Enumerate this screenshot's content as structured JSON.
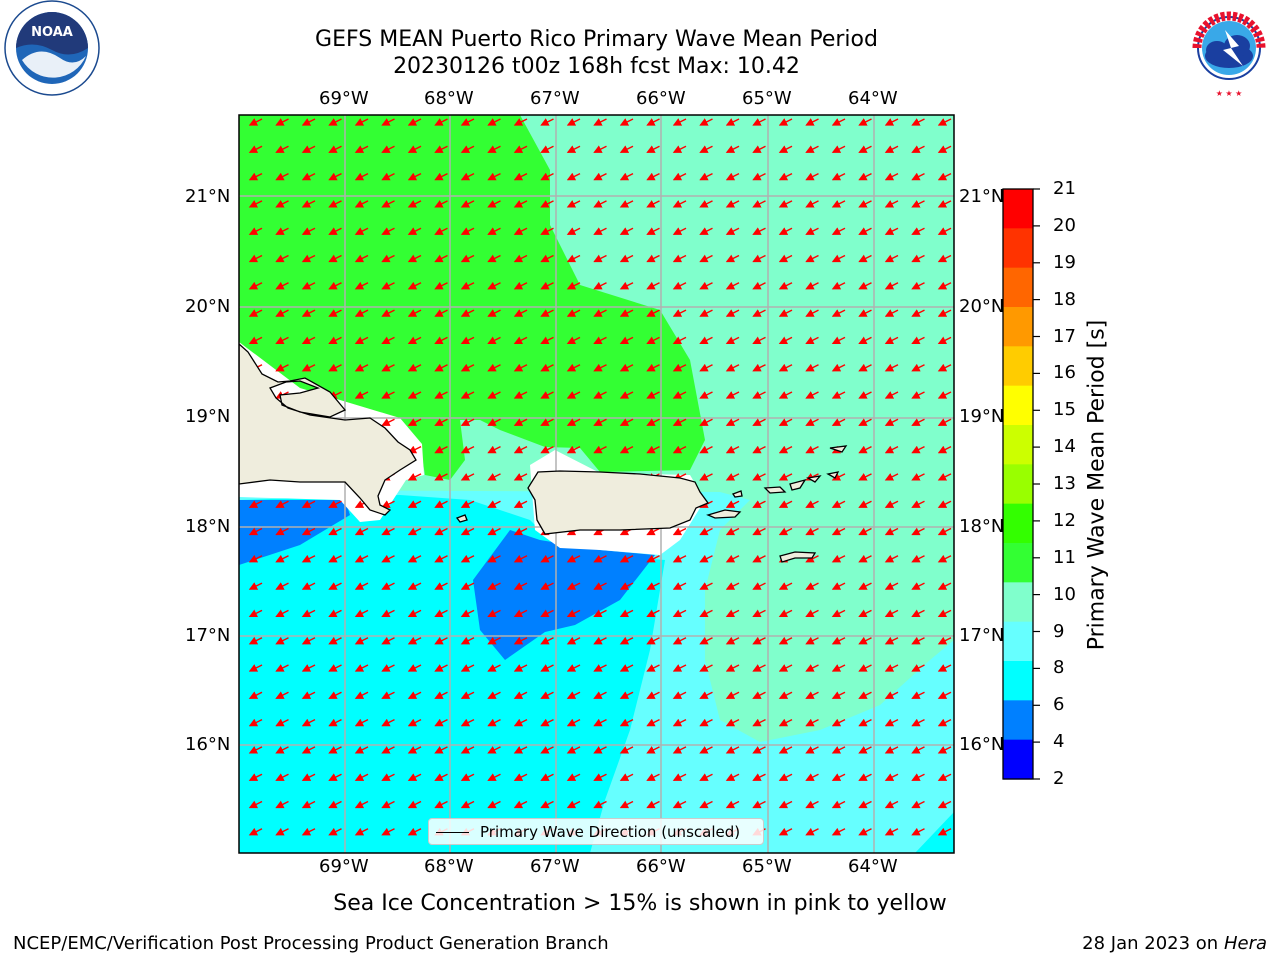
{
  "header": {
    "title_line1": "GEFS MEAN Puerto Rico Primary Wave Mean Period",
    "title_line2": "20230126 t00z 168h fcst   Max: 10.42"
  },
  "logos": {
    "left": {
      "name": "noaa-logo",
      "text": "NOAA",
      "ring_text": "NATIONAL OCEANIC AND ATMOSPHERIC ADMINISTRATION · U.S. DEPARTMENT OF COMMERCE"
    },
    "right": {
      "name": "nws-logo",
      "ring_text": "NATIONAL WEATHER SERVICE"
    }
  },
  "map": {
    "lon_labels": [
      "69°W",
      "68°W",
      "67°W",
      "66°W",
      "65°W",
      "64°W"
    ],
    "lat_labels": [
      "21°N",
      "20°N",
      "19°N",
      "18°N",
      "17°N",
      "16°N"
    ],
    "land_color": "#efeddd",
    "arrow_color": "#ff0000"
  },
  "legend": {
    "label": "Primary Wave Direction (unscaled)"
  },
  "colorbar": {
    "label": "Primary Wave Mean Period [s]",
    "ticks": [
      "21",
      "20",
      "19",
      "18",
      "17",
      "16",
      "15",
      "14",
      "13",
      "12",
      "11",
      "10",
      "9",
      "8",
      "6",
      "4",
      "2"
    ],
    "colors_top_to_bottom": [
      "#ff0000",
      "#ff3300",
      "#ff6600",
      "#ff9900",
      "#ffcc00",
      "#ffff00",
      "#ccff00",
      "#99ff00",
      "#33ff00",
      "#33ff33",
      "#80ffcc",
      "#66ffff",
      "#00ffff",
      "#0080ff",
      "#0000ff"
    ]
  },
  "footer": {
    "note": "Sea Ice Concentration > 15% is shown in pink to yellow",
    "branch": "NCEP/EMC/Verification Post Processing Product Generation Branch",
    "date_prefix": "28 Jan 2023 on ",
    "machine": "Hera"
  }
}
